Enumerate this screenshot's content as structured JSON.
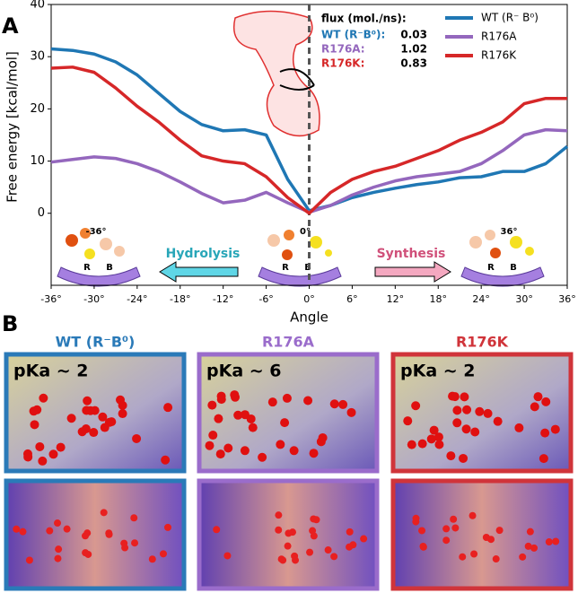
{
  "chart_data": {
    "type": "line",
    "ylabel": "Free energy [kcal/mol]",
    "xlabel": "Angle",
    "x": [
      -36,
      -33,
      -30,
      -27,
      -24,
      -21,
      -18,
      -15,
      -12,
      -9,
      -6,
      -3,
      0,
      3,
      6,
      9,
      12,
      15,
      18,
      21,
      24,
      27,
      30,
      33,
      36
    ],
    "series": [
      {
        "name": "WT (R⁻ B⁰)",
        "color": "#1f77b4",
        "values": [
          31.5,
          31.2,
          30.5,
          29,
          26.5,
          23,
          19.5,
          17,
          15.8,
          16,
          15,
          6.5,
          0.5,
          1.5,
          3,
          4,
          4.8,
          5.5,
          6,
          6.8,
          7,
          8,
          8,
          9.5,
          12.8
        ]
      },
      {
        "name": "R176A",
        "color": "#9467bd",
        "values": [
          9.8,
          10.3,
          10.8,
          10.5,
          9.5,
          8,
          6,
          3.8,
          2,
          2.5,
          4,
          2,
          0.2,
          1.5,
          3.5,
          5,
          6.2,
          7,
          7.5,
          8,
          9.5,
          12,
          15,
          16,
          15.8
        ]
      },
      {
        "name": "R176K",
        "color": "#d62728",
        "values": [
          27.8,
          28,
          27,
          24,
          20.5,
          17.5,
          14,
          11,
          10,
          9.5,
          7,
          3,
          0,
          4,
          6.5,
          8,
          9,
          10.5,
          12,
          14,
          15.5,
          17.5,
          21,
          22,
          22
        ]
      }
    ],
    "xlim": [
      -36,
      36
    ],
    "ylim": [
      -13.8,
      40
    ],
    "xticks": [
      {
        "value": -36,
        "label": "-36°"
      },
      {
        "value": -30,
        "label": "-30°"
      },
      {
        "value": -24,
        "label": "-24°"
      },
      {
        "value": -18,
        "label": "-18°"
      },
      {
        "value": -12,
        "label": "-12°"
      },
      {
        "value": -6,
        "label": "-6°"
      },
      {
        "value": 0,
        "label": "0°"
      },
      {
        "value": 6,
        "label": "6°"
      },
      {
        "value": 12,
        "label": "12°"
      },
      {
        "value": 18,
        "label": "18°"
      },
      {
        "value": 24,
        "label": "24°"
      },
      {
        "value": 30,
        "label": "30°"
      },
      {
        "value": 36,
        "label": "36°"
      }
    ],
    "yticks": [
      0,
      10,
      20,
      30,
      40
    ],
    "reference_line": 0,
    "legend": "upper right",
    "annotations": {
      "left_angle": "-36°",
      "center_angle": "0°",
      "right_angle": "36°",
      "hydrolysis": "Hydrolysis",
      "synthesis": "Synthesis",
      "r": "R",
      "b": "B"
    },
    "flux": {
      "title": "flux (mol./ns):",
      "rows": [
        {
          "label": "WT (R⁻B⁰):",
          "value": 0.03,
          "color": "#1f77b4"
        },
        {
          "label": "R176A:",
          "value": 1.02,
          "color": "#9467bd"
        },
        {
          "label": "R176K:",
          "value": 0.83,
          "color": "#d62728"
        }
      ]
    }
  },
  "panel_labels": [
    "A",
    "B"
  ],
  "panel_b": [
    {
      "title": "WT (R⁻B⁰)",
      "pka": "pKa ~ 2"
    },
    {
      "title": "R176A",
      "pka": "pKa ~ 6"
    },
    {
      "title": "R176K",
      "pka": "pKa ~ 2"
    }
  ]
}
